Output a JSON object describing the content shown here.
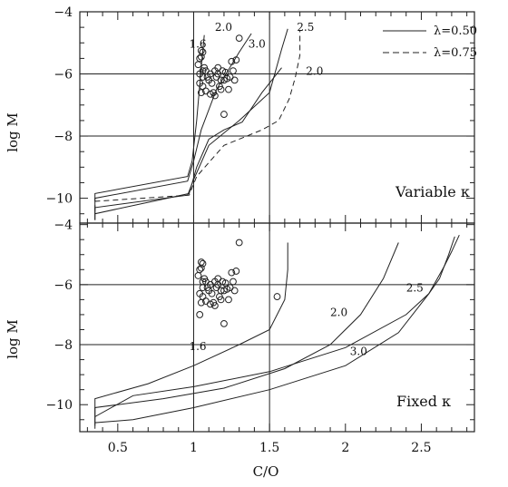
{
  "chart_data": [
    {
      "type": "line",
      "panel_label": "Variable κ",
      "xlabel": "",
      "ylabel": "log M",
      "xlim": [
        0.25,
        2.85
      ],
      "ylim": [
        -10.8,
        -4.0
      ],
      "xticks": [
        0.5,
        1,
        1.5,
        2,
        2.5
      ],
      "yticks": [
        -4,
        -6,
        -8,
        -10
      ],
      "ytick_labels": [
        "−4",
        "−6",
        "−8",
        "−10"
      ],
      "grid_h": [
        -6,
        -8
      ],
      "grid_v": [
        1.0,
        1.5
      ],
      "legend": [
        {
          "label": "λ=0.50",
          "style": "solid"
        },
        {
          "label": "λ=0.75",
          "style": "dashed"
        }
      ],
      "series": [
        {
          "style": "solid",
          "label": "1.6",
          "label_at": [
            0.97,
            -5.15
          ],
          "x": [
            0.35,
            0.35,
            0.96,
            0.99,
            1.02,
            1.05,
            1.07
          ],
          "y": [
            -10.1,
            -9.85,
            -9.3,
            -8.8,
            -7.5,
            -5.8,
            -4.75
          ]
        },
        {
          "style": "solid",
          "label": "2.0",
          "label_at": [
            1.14,
            -4.62
          ],
          "x": [
            0.35,
            0.35,
            0.96,
            1.0,
            1.05,
            1.15,
            1.3,
            1.38
          ],
          "y": [
            -10.5,
            -10.0,
            -9.45,
            -8.8,
            -7.8,
            -6.5,
            -5.3,
            -4.7
          ]
        },
        {
          "style": "solid",
          "label": "2.5",
          "label_at": [
            1.68,
            -4.62
          ],
          "x": [
            0.35,
            0.35,
            0.96,
            1.0,
            1.1,
            1.3,
            1.5,
            1.58,
            1.62
          ],
          "y": [
            -10.7,
            -10.3,
            -9.9,
            -9.4,
            -8.3,
            -7.5,
            -6.6,
            -5.2,
            -4.55
          ]
        },
        {
          "style": "solid",
          "label": "3.0",
          "label_at": [
            1.36,
            -5.15
          ],
          "x": [
            0.35,
            0.35,
            0.97,
            1.02,
            1.1,
            1.2,
            1.32,
            1.45,
            1.58
          ],
          "y": [
            -10.7,
            -10.5,
            -9.85,
            -9.0,
            -8.1,
            -7.8,
            -7.55,
            -6.6,
            -5.8
          ]
        },
        {
          "style": "dashed",
          "label": "2.0",
          "label_at": [
            1.74,
            -6.03
          ],
          "x": [
            0.35,
            0.35,
            0.97,
            1.02,
            1.2,
            1.45,
            1.56,
            1.63,
            1.67,
            1.7,
            1.7
          ],
          "y": [
            -10.4,
            -10.1,
            -9.9,
            -9.3,
            -8.3,
            -7.8,
            -7.5,
            -6.8,
            -6.1,
            -5.4,
            -4.6
          ]
        }
      ],
      "points": {
        "x": [
          1.03,
          1.04,
          1.05,
          1.05,
          1.06,
          1.06,
          1.07,
          1.04,
          1.05,
          1.06,
          1.08,
          1.1,
          1.11,
          1.12,
          1.13,
          1.14,
          1.15,
          1.16,
          1.17,
          1.18,
          1.19,
          1.2,
          1.21,
          1.22,
          1.24,
          1.25,
          1.27,
          1.28,
          1.3,
          1.06,
          1.04,
          1.08,
          1.09,
          1.11,
          1.14,
          1.16,
          1.18,
          1.2,
          1.23,
          1.26
        ],
        "y": [
          -5.7,
          -5.5,
          -5.25,
          -5.45,
          -5.3,
          -6.1,
          -5.8,
          -6.3,
          -6.6,
          -6.4,
          -5.9,
          -6.2,
          -6.0,
          -6.3,
          -6.6,
          -5.9,
          -6.1,
          -5.8,
          -6.4,
          -6.5,
          -5.9,
          -6.2,
          -5.95,
          -6.15,
          -6.1,
          -5.6,
          -6.2,
          -5.55,
          -4.85,
          -5.9,
          -6.0,
          -6.55,
          -6.1,
          -6.65,
          -6.7,
          -6.0,
          -6.2,
          -7.3,
          -6.5,
          -5.9
        ]
      }
    },
    {
      "type": "line",
      "panel_label": "Fixed κ",
      "xlabel": "C/O",
      "ylabel": "log M",
      "xlim": [
        0.25,
        2.85
      ],
      "ylim": [
        -10.9,
        -3.95
      ],
      "xticks": [
        0.5,
        1,
        1.5,
        2,
        2.5
      ],
      "xtick_labels": [
        "0.5",
        "1",
        "1.5",
        "2",
        "2.5"
      ],
      "yticks": [
        -4,
        -6,
        -8,
        -10
      ],
      "ytick_labels": [
        "−4",
        "−6",
        "−8",
        "−10"
      ],
      "grid_h": [
        -6,
        -8
      ],
      "grid_v": [
        1.0,
        1.5
      ],
      "series": [
        {
          "style": "solid",
          "label": "1.6",
          "label_at": [
            0.97,
            -8.18
          ],
          "x": [
            0.35,
            0.35,
            0.7,
            1.0,
            1.3,
            1.5,
            1.6,
            1.62,
            1.62
          ],
          "y": [
            -10.4,
            -9.8,
            -9.3,
            -8.7,
            -8.0,
            -7.5,
            -6.5,
            -5.5,
            -4.6
          ]
        },
        {
          "style": "solid",
          "label": "2.0",
          "label_at": [
            1.9,
            -7.05
          ],
          "x": [
            0.35,
            0.35,
            0.8,
            1.2,
            1.6,
            1.9,
            2.1,
            2.25,
            2.35
          ],
          "y": [
            -10.6,
            -10.1,
            -9.8,
            -9.45,
            -8.8,
            -8.0,
            -7.0,
            -5.8,
            -4.6
          ]
        },
        {
          "style": "solid",
          "label": "2.5",
          "label_at": [
            2.4,
            -6.23
          ],
          "x": [
            0.35,
            0.35,
            0.6,
            1.0,
            1.5,
            2.0,
            2.4,
            2.55,
            2.62,
            2.68,
            2.72
          ],
          "y": [
            -10.7,
            -10.4,
            -9.7,
            -9.4,
            -8.9,
            -8.1,
            -7.0,
            -6.3,
            -5.8,
            -5.0,
            -4.4
          ]
        },
        {
          "style": "solid",
          "label": "3.0",
          "label_at": [
            2.03,
            -8.35
          ],
          "x": [
            0.35,
            0.35,
            0.6,
            1.0,
            1.5,
            2.0,
            2.35,
            2.55,
            2.65,
            2.7,
            2.75
          ],
          "y": [
            -10.8,
            -10.6,
            -10.5,
            -10.1,
            -9.5,
            -8.7,
            -7.6,
            -6.3,
            -5.4,
            -4.9,
            -4.35
          ]
        }
      ],
      "points": {
        "x": [
          1.03,
          1.04,
          1.05,
          1.05,
          1.06,
          1.06,
          1.07,
          1.04,
          1.05,
          1.06,
          1.08,
          1.1,
          1.11,
          1.12,
          1.13,
          1.14,
          1.15,
          1.16,
          1.17,
          1.18,
          1.19,
          1.2,
          1.21,
          1.22,
          1.24,
          1.25,
          1.27,
          1.28,
          1.3,
          1.06,
          1.04,
          1.08,
          1.09,
          1.11,
          1.14,
          1.16,
          1.18,
          1.2,
          1.23,
          1.26,
          1.55
        ],
        "y": [
          -5.7,
          -5.5,
          -5.25,
          -5.45,
          -5.3,
          -6.1,
          -5.8,
          -6.3,
          -6.6,
          -6.4,
          -5.9,
          -6.2,
          -6.0,
          -6.3,
          -6.6,
          -5.9,
          -6.1,
          -5.8,
          -6.4,
          -6.5,
          -5.9,
          -6.2,
          -5.95,
          -6.15,
          -6.1,
          -5.6,
          -6.2,
          -5.55,
          -4.6,
          -5.9,
          -7.0,
          -6.55,
          -6.1,
          -6.65,
          -6.7,
          -6.0,
          -6.2,
          -7.3,
          -6.5,
          -5.9,
          -6.4
        ]
      }
    }
  ]
}
